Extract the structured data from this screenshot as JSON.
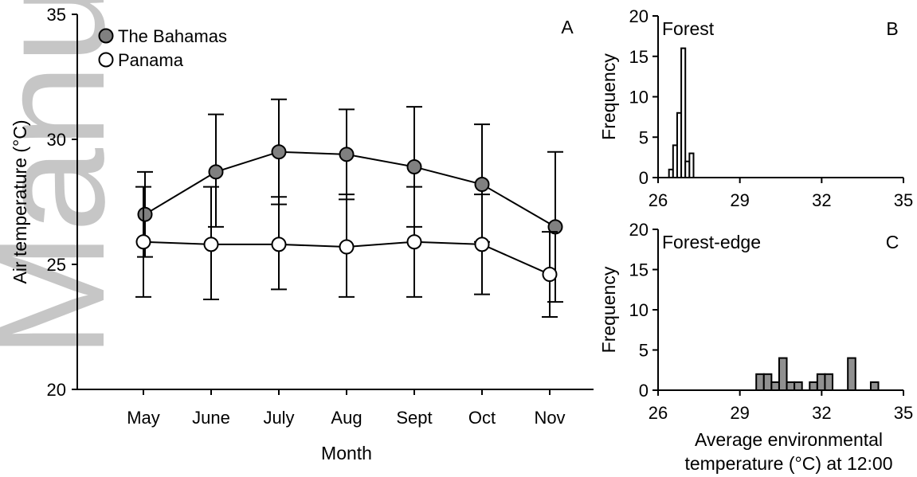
{
  "watermark": "Manuscript",
  "chart_data": [
    {
      "panel": "A",
      "type": "line",
      "categories": [
        "May",
        "June",
        "July",
        "Aug",
        "Sept",
        "Oct",
        "Nov"
      ],
      "xlabel": "Month",
      "ylabel": "Air temperature (°C)",
      "ylim": [
        20,
        35
      ],
      "yticks": [
        20,
        25,
        30,
        35
      ],
      "legend_position": "top-left",
      "series": [
        {
          "name": "The Bahamas",
          "marker": "filled-circle",
          "color": "#808080",
          "values": [
            27.0,
            28.7,
            29.5,
            29.4,
            28.9,
            28.2,
            26.5
          ],
          "error_low": [
            25.3,
            26.5,
            27.4,
            27.6,
            26.5,
            25.9,
            23.5
          ],
          "error_high": [
            28.7,
            31.0,
            31.6,
            31.2,
            31.3,
            30.6,
            29.5
          ]
        },
        {
          "name": "Panama",
          "marker": "open-circle",
          "color": "#ffffff",
          "values": [
            25.9,
            25.8,
            25.8,
            25.7,
            25.9,
            25.8,
            24.6
          ],
          "error_low": [
            23.7,
            23.6,
            24.0,
            23.7,
            23.7,
            23.8,
            22.9
          ],
          "error_high": [
            28.1,
            28.1,
            27.7,
            27.8,
            28.1,
            27.8,
            26.3
          ]
        }
      ]
    },
    {
      "panel": "B",
      "type": "bar",
      "title": "Forest",
      "ylabel": "Frequency",
      "xlim": [
        26,
        35
      ],
      "xticks": [
        26,
        29,
        32,
        35
      ],
      "ylim": [
        0,
        20
      ],
      "yticks": [
        0,
        5,
        10,
        15,
        20
      ],
      "bin_width": 0.15,
      "bar_color": "#ffffff",
      "bins": [
        26.4,
        26.55,
        26.7,
        26.85,
        27.0,
        27.15,
        27.3
      ],
      "values": [
        1,
        4,
        8,
        16,
        2,
        3,
        0
      ]
    },
    {
      "panel": "C",
      "type": "bar",
      "title": "Forest-edge",
      "ylabel": "Frequency",
      "xlabel": "Average environmental temperature (°C) at 12:00",
      "xlabel_lines": [
        "Average environmental",
        "temperature (°C) at 12:00"
      ],
      "xlim": [
        26,
        35
      ],
      "xticks": [
        26,
        29,
        32,
        35
      ],
      "ylim": [
        0,
        20
      ],
      "yticks": [
        0,
        5,
        10,
        15,
        20
      ],
      "bin_width": 0.28,
      "bar_color": "#909090",
      "bins": [
        29.6,
        29.88,
        30.16,
        30.44,
        30.72,
        31.0,
        31.28,
        31.56,
        31.84,
        32.12,
        32.4,
        32.68,
        32.96,
        33.24,
        33.52,
        33.8
      ],
      "values": [
        2,
        2,
        1,
        4,
        1,
        1,
        0,
        1,
        2,
        2,
        0,
        0,
        4,
        0,
        0,
        1
      ]
    }
  ]
}
